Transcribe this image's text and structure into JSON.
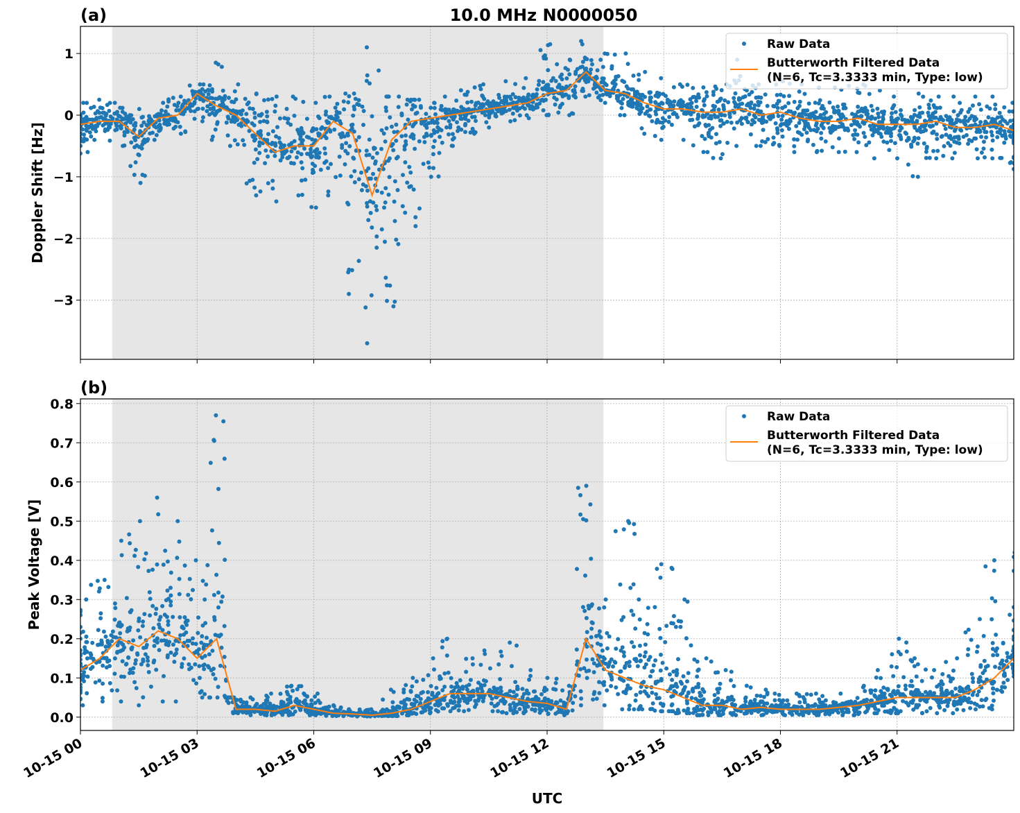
{
  "chart_data": [
    {
      "type": "scatter+line",
      "panel_label": "(a)",
      "title": "10.0 MHz N0000050",
      "xlabel": "",
      "ylabel": "Doppler Shift [Hz]",
      "xlim_hours": [
        0,
        24
      ],
      "ylim": [
        -3.96,
        1.44
      ],
      "yticks": [
        1,
        0,
        -1,
        -2,
        -3
      ],
      "ytick_labels": [
        "1",
        "0",
        "−1",
        "−2",
        "−3"
      ],
      "grid": true,
      "legend_position": "top-right",
      "shaded_interval_utc": [
        "10-15 00:49",
        "10-15 13:27"
      ],
      "x_hours": [
        0,
        0.5,
        1,
        1.5,
        2,
        2.5,
        3,
        3.5,
        4,
        4.5,
        5,
        5.5,
        6,
        6.5,
        7,
        7.5,
        8,
        8.5,
        9,
        9.5,
        10,
        10.5,
        11,
        11.5,
        12,
        12.5,
        13,
        13.5,
        14,
        14.5,
        15,
        15.5,
        16,
        16.5,
        17,
        17.5,
        18,
        18.5,
        19,
        19.5,
        20,
        20.5,
        21,
        21.5,
        22,
        22.5,
        23,
        23.5,
        24
      ],
      "series": [
        {
          "name": "Raw Data",
          "color": "#1f77b4",
          "raw_max": [
            0.2,
            0.25,
            0.2,
            0.1,
            0.2,
            0.3,
            0.5,
            0.85,
            0.5,
            0.35,
            0.3,
            0.3,
            0.2,
            0.3,
            0.35,
            1.1,
            0.3,
            0.25,
            0.2,
            0.3,
            0.45,
            0.5,
            0.55,
            0.6,
            1.15,
            0.9,
            1.2,
            1.0,
            1.0,
            0.7,
            0.6,
            0.5,
            0.45,
            0.5,
            0.9,
            0.5,
            0.55,
            0.5,
            0.45,
            0.45,
            0.5,
            0.4,
            0.3,
            0.35,
            0.3,
            0.3,
            0.3,
            0.3,
            0.2
          ],
          "raw_min": [
            -0.7,
            -0.4,
            -0.5,
            -1.1,
            -0.4,
            -0.3,
            -0.1,
            -0.4,
            -0.5,
            -1.3,
            -1.4,
            -1.3,
            -1.5,
            -1.3,
            -2.9,
            -3.7,
            -3.1,
            -1.8,
            -1.0,
            -0.5,
            -0.3,
            -0.2,
            -0.1,
            -0.05,
            0.0,
            0.0,
            0.3,
            0.2,
            0.0,
            -0.3,
            -0.4,
            -0.4,
            -0.6,
            -0.7,
            -0.5,
            -0.5,
            -0.5,
            -0.6,
            -0.6,
            -0.6,
            -0.6,
            -0.7,
            -0.7,
            -1.0,
            -0.7,
            -0.7,
            -0.7,
            -0.7,
            -0.9
          ]
        },
        {
          "name": "Butterworth Filtered Data",
          "name_line2": "(N=6, Tc=3.3333 min, Type: low)",
          "color": "#ff7f0e",
          "values": [
            -0.15,
            -0.1,
            -0.1,
            -0.35,
            -0.05,
            0.0,
            0.35,
            0.15,
            0.0,
            -0.3,
            -0.6,
            -0.5,
            -0.5,
            -0.1,
            -0.3,
            -1.3,
            -0.4,
            -0.1,
            -0.05,
            0.0,
            0.05,
            0.1,
            0.15,
            0.2,
            0.35,
            0.4,
            0.7,
            0.4,
            0.35,
            0.2,
            0.1,
            0.1,
            0.05,
            0.05,
            0.1,
            0.0,
            0.05,
            -0.05,
            -0.1,
            -0.1,
            -0.05,
            -0.15,
            -0.15,
            -0.15,
            -0.1,
            -0.2,
            -0.2,
            -0.15,
            -0.25
          ]
        }
      ]
    },
    {
      "type": "scatter+line",
      "panel_label": "(b)",
      "title": "",
      "xlabel": "UTC",
      "ylabel": "Peak Voltage [V]",
      "xlim_hours": [
        0,
        24
      ],
      "ylim": [
        -0.034,
        0.812
      ],
      "yticks": [
        0.0,
        0.1,
        0.2,
        0.3,
        0.4,
        0.5,
        0.6,
        0.7,
        0.8
      ],
      "ytick_labels": [
        "0.0",
        "0.1",
        "0.2",
        "0.3",
        "0.4",
        "0.5",
        "0.6",
        "0.7",
        "0.8"
      ],
      "xticks_hours": [
        0,
        3,
        6,
        9,
        12,
        15,
        18,
        21
      ],
      "xtick_labels": [
        "10-15 00",
        "10-15 03",
        "10-15 06",
        "10-15 09",
        "10-15 12",
        "10-15 15",
        "10-15 18",
        "10-15 21"
      ],
      "grid": true,
      "legend_position": "top-right",
      "shaded_interval_utc": [
        "10-15 00:49",
        "10-15 13:27"
      ],
      "x_hours": [
        0,
        0.5,
        1,
        1.5,
        2,
        2.5,
        3,
        3.5,
        4,
        4.5,
        5,
        5.5,
        6,
        6.5,
        7,
        7.5,
        8,
        8.5,
        9,
        9.5,
        10,
        10.5,
        11,
        11.5,
        12,
        12.5,
        13,
        13.5,
        14,
        14.5,
        15,
        15.5,
        16,
        16.5,
        17,
        17.5,
        18,
        18.5,
        19,
        19.5,
        20,
        20.5,
        21,
        21.5,
        22,
        22.5,
        23,
        23.5,
        24
      ],
      "series": [
        {
          "name": "Raw Data",
          "color": "#1f77b4",
          "raw_max": [
            0.3,
            0.35,
            0.45,
            0.5,
            0.56,
            0.5,
            0.4,
            0.77,
            0.05,
            0.05,
            0.06,
            0.08,
            0.06,
            0.03,
            0.02,
            0.02,
            0.07,
            0.1,
            0.15,
            0.2,
            0.15,
            0.17,
            0.19,
            0.12,
            0.1,
            0.08,
            0.59,
            0.3,
            0.5,
            0.3,
            0.39,
            0.3,
            0.15,
            0.12,
            0.08,
            0.07,
            0.06,
            0.06,
            0.06,
            0.06,
            0.08,
            0.12,
            0.2,
            0.15,
            0.12,
            0.15,
            0.25,
            0.4,
            0.42
          ],
          "raw_min": [
            0.03,
            0.04,
            0.04,
            0.03,
            0.04,
            0.04,
            0.05,
            0.05,
            0.01,
            0.005,
            0.005,
            0.005,
            0.005,
            0.003,
            0.002,
            0.002,
            0.003,
            0.005,
            0.01,
            0.015,
            0.015,
            0.015,
            0.01,
            0.01,
            0.008,
            0.005,
            0.03,
            0.03,
            0.02,
            0.02,
            0.015,
            0.01,
            0.005,
            0.005,
            0.005,
            0.005,
            0.005,
            0.005,
            0.005,
            0.005,
            0.005,
            0.01,
            0.01,
            0.01,
            0.01,
            0.01,
            0.02,
            0.02,
            0.04
          ]
        },
        {
          "name": "Butterworth Filtered Data",
          "name_line2": "(N=6, Tc=3.3333 min, Type: low)",
          "color": "#ff7f0e",
          "values": [
            0.12,
            0.15,
            0.2,
            0.18,
            0.22,
            0.2,
            0.15,
            0.2,
            0.02,
            0.02,
            0.015,
            0.03,
            0.02,
            0.01,
            0.008,
            0.005,
            0.01,
            0.02,
            0.04,
            0.06,
            0.06,
            0.06,
            0.05,
            0.04,
            0.035,
            0.02,
            0.2,
            0.12,
            0.1,
            0.08,
            0.07,
            0.05,
            0.03,
            0.03,
            0.02,
            0.025,
            0.02,
            0.02,
            0.02,
            0.025,
            0.03,
            0.04,
            0.05,
            0.05,
            0.05,
            0.05,
            0.07,
            0.1,
            0.15
          ]
        }
      ]
    }
  ]
}
